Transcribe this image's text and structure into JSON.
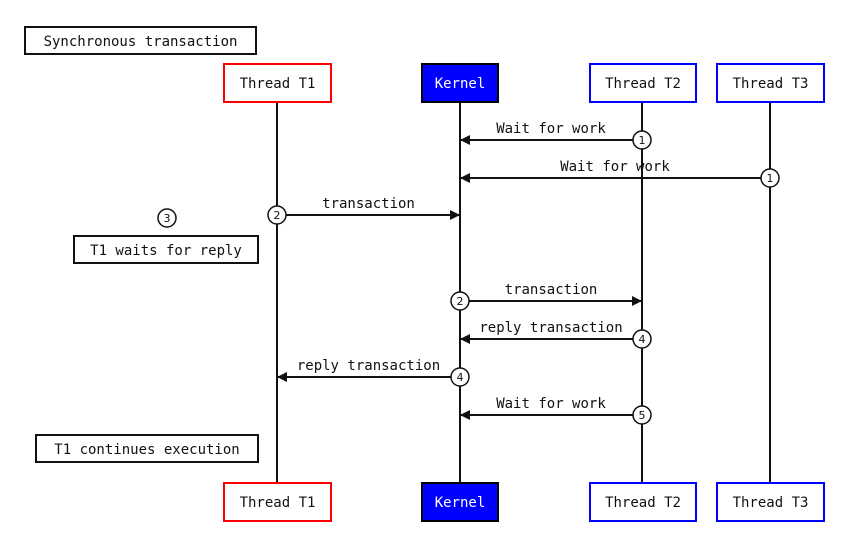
{
  "title": "Synchronous transaction",
  "participants": [
    {
      "id": "t1",
      "label": "Thread T1",
      "border": "#ff0000",
      "fill": "#ffffff",
      "text": "#111111"
    },
    {
      "id": "kernel",
      "label": "Kernel",
      "border": "#000000",
      "fill": "#0000ff",
      "text": "#ffffff"
    },
    {
      "id": "t2",
      "label": "Thread T2",
      "border": "#0000ff",
      "fill": "#ffffff",
      "text": "#111111"
    },
    {
      "id": "t3",
      "label": "Thread T3",
      "border": "#0000ff",
      "fill": "#ffffff",
      "text": "#111111"
    }
  ],
  "messages": [
    {
      "from": "t2",
      "to": "kernel",
      "label": "Wait for work",
      "step": "1"
    },
    {
      "from": "t3",
      "to": "kernel",
      "label": "Wait for work",
      "step": "1"
    },
    {
      "from": "t1",
      "to": "kernel",
      "label": "transaction",
      "step": "2"
    },
    {
      "from": "kernel",
      "to": "t2",
      "label": "transaction",
      "step": "2"
    },
    {
      "from": "t2",
      "to": "kernel",
      "label": "reply transaction",
      "step": "4"
    },
    {
      "from": "kernel",
      "to": "t1",
      "label": "reply transaction",
      "step": "4"
    },
    {
      "from": "t2",
      "to": "kernel",
      "label": "Wait for work",
      "step": "5"
    }
  ],
  "notes": [
    {
      "label": "T1 waits for reply",
      "step": "3"
    },
    {
      "label": "T1 continues execution"
    }
  ]
}
